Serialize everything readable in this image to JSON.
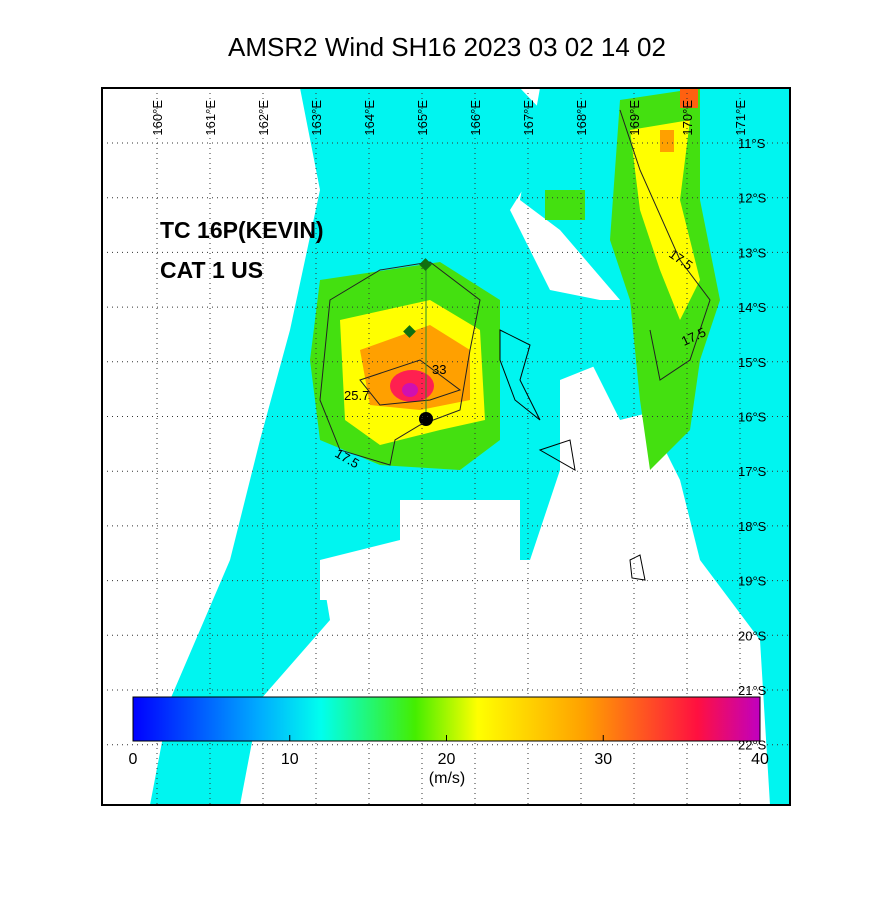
{
  "map": {
    "title": "AMSR2 Wind  SH16  2023 03 02 14 02",
    "lon_labels": [
      "160°E",
      "161°E",
      "162°E",
      "163°E",
      "164°E",
      "165°E",
      "166°E",
      "167°E",
      "168°E",
      "169°E",
      "170°E",
      "171°E"
    ],
    "lat_labels": [
      "11°S",
      "12°S",
      "13°S",
      "14°S",
      "15°S",
      "16°S",
      "17°S",
      "18°S",
      "19°S",
      "20°S",
      "21°S",
      "22°S"
    ],
    "annotation": [
      "TC 16P(KEVIN)",
      "CAT 1 US"
    ],
    "contour_labels": [
      "17.5",
      "25.7",
      "33",
      "17.5",
      "17.5"
    ],
    "colorbar": {
      "ticks": [
        0,
        10,
        20,
        30,
        40
      ],
      "range": [
        0,
        40
      ],
      "unit": "(m/s)"
    }
  }
}
